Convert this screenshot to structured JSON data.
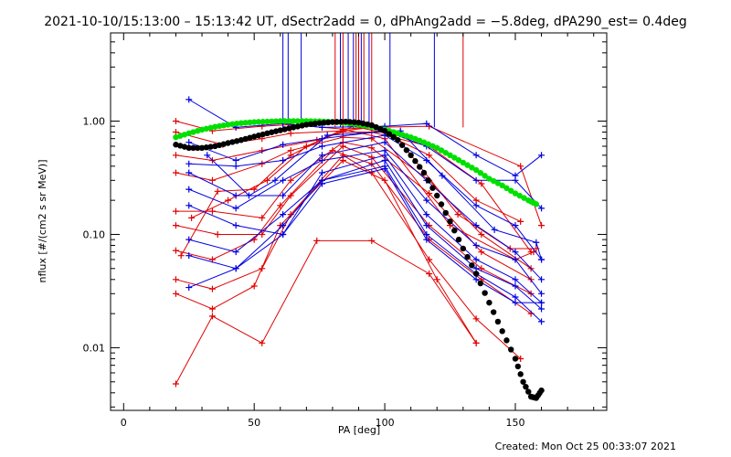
{
  "header": {
    "title": "2021-10-10/15:13:00 – 15:13:42 UT, dSectr2add = 0, dPhAng2add = −5.8deg, dPA290_est=  0.4deg",
    "created": "Created: Mon Oct 25 00:33:07 2021"
  },
  "colors": {
    "red": "#e00000",
    "blue": "#0000e0",
    "green": "#00e000",
    "black": "#000000"
  },
  "chart_data": {
    "type": "line",
    "xlabel": "PA [deg]",
    "ylabel": "nflux [#/(cm2 s sr MeV)]",
    "xlim": [
      -5,
      185
    ],
    "ylim": [
      0.0028,
      6.0
    ],
    "yscale": "log",
    "grid": false,
    "xticks": [
      {
        "v": 0,
        "label": "0"
      },
      {
        "v": 50,
        "label": "50"
      },
      {
        "v": 100,
        "label": "100"
      },
      {
        "v": 150,
        "label": "150"
      }
    ],
    "yticks": [
      {
        "v": 0.01,
        "label": "0.01"
      },
      {
        "v": 0.1,
        "label": "0.10"
      },
      {
        "v": 1,
        "label": "1.00"
      }
    ],
    "vertical_markers": {
      "blue": [
        61,
        63,
        68,
        83,
        86,
        88,
        91,
        94,
        102,
        119
      ],
      "red": [
        81,
        84,
        89,
        90,
        92,
        95,
        130
      ]
    },
    "series": [
      {
        "color": "red",
        "points": [
          [
            20,
            1.0
          ],
          [
            34,
            0.82
          ],
          [
            53,
            0.9
          ],
          [
            64,
            0.93
          ],
          [
            84,
            0.85
          ],
          [
            95,
            0.88
          ],
          [
            117,
            0.9
          ],
          [
            152,
            0.4
          ],
          [
            160,
            0.12
          ]
        ]
      },
      {
        "color": "red",
        "points": [
          [
            20,
            0.8
          ],
          [
            38,
            0.62
          ],
          [
            53,
            0.7
          ],
          [
            64,
            0.78
          ],
          [
            84,
            0.82
          ],
          [
            95,
            0.88
          ],
          [
            117,
            0.5
          ],
          [
            135,
            0.2
          ],
          [
            152,
            0.13
          ]
        ]
      },
      {
        "color": "red",
        "points": [
          [
            20,
            0.5
          ],
          [
            34,
            0.45
          ],
          [
            53,
            0.55
          ],
          [
            74,
            0.68
          ],
          [
            84,
            0.8
          ],
          [
            95,
            0.8
          ],
          [
            117,
            0.6
          ],
          [
            137,
            0.28
          ],
          [
            156,
            0.07
          ]
        ]
      },
      {
        "color": "red",
        "points": [
          [
            20,
            0.35
          ],
          [
            34,
            0.3
          ],
          [
            53,
            0.42
          ],
          [
            64,
            0.55
          ],
          [
            84,
            0.72
          ],
          [
            95,
            0.7
          ],
          [
            117,
            0.3
          ],
          [
            137,
            0.1
          ],
          [
            156,
            0.05
          ]
        ]
      },
      {
        "color": "red",
        "points": [
          [
            20,
            0.16
          ],
          [
            34,
            0.16
          ],
          [
            53,
            0.14
          ],
          [
            64,
            0.3
          ],
          [
            84,
            0.65
          ],
          [
            95,
            0.58
          ],
          [
            117,
            0.23
          ],
          [
            137,
            0.07
          ],
          [
            156,
            0.04
          ]
        ]
      },
      {
        "color": "red",
        "points": [
          [
            20,
            0.12
          ],
          [
            36,
            0.1
          ],
          [
            53,
            0.1
          ],
          [
            64,
            0.22
          ],
          [
            84,
            0.6
          ],
          [
            95,
            0.48
          ],
          [
            117,
            0.12
          ],
          [
            137,
            0.05
          ],
          [
            156,
            0.03
          ]
        ]
      },
      {
        "color": "red",
        "points": [
          [
            20,
            0.072
          ],
          [
            34,
            0.06
          ],
          [
            50,
            0.09
          ],
          [
            60,
            0.18
          ],
          [
            80,
            0.55
          ],
          [
            95,
            0.42
          ],
          [
            117,
            0.09
          ],
          [
            137,
            0.04
          ],
          [
            156,
            0.02
          ]
        ]
      },
      {
        "color": "red",
        "points": [
          [
            20,
            0.04
          ],
          [
            34,
            0.033
          ],
          [
            53,
            0.05
          ],
          [
            64,
            0.15
          ],
          [
            84,
            0.5
          ],
          [
            95,
            0.35
          ],
          [
            117,
            0.06
          ],
          [
            135,
            0.018
          ],
          [
            152,
            0.008
          ]
        ]
      },
      {
        "color": "red",
        "points": [
          [
            20,
            0.03
          ],
          [
            34,
            0.022
          ],
          [
            50,
            0.035
          ],
          [
            60,
            0.12
          ],
          [
            84,
            0.45
          ],
          [
            100,
            0.3
          ],
          [
            120,
            0.04
          ],
          [
            135,
            0.011
          ]
        ]
      },
      {
        "color": "red",
        "points": [
          [
            20,
            0.0048
          ],
          [
            34,
            0.019
          ],
          [
            53,
            0.011
          ],
          [
            74,
            0.088
          ],
          [
            95,
            0.088
          ],
          [
            117,
            0.045
          ],
          [
            135,
            0.011
          ]
        ]
      },
      {
        "color": "red",
        "points": [
          [
            22,
            0.065
          ],
          [
            36,
            0.24
          ],
          [
            50,
            0.25
          ],
          [
            64,
            0.5
          ],
          [
            84,
            0.85
          ],
          [
            100,
            0.7
          ],
          [
            125,
            0.12
          ],
          [
            150,
            0.06
          ],
          [
            157,
            0.07
          ]
        ]
      },
      {
        "color": "red",
        "points": [
          [
            26,
            0.14
          ],
          [
            40,
            0.2
          ],
          [
            55,
            0.3
          ],
          [
            70,
            0.6
          ],
          [
            88,
            0.9
          ],
          [
            104,
            0.75
          ],
          [
            128,
            0.15
          ],
          [
            148,
            0.075
          ],
          [
            158,
            0.075
          ]
        ]
      },
      {
        "color": "blue",
        "points": [
          [
            25,
            1.55
          ],
          [
            43,
            0.88
          ],
          [
            61,
            0.95
          ],
          [
            76,
            0.88
          ],
          [
            100,
            0.9
          ],
          [
            116,
            0.95
          ],
          [
            135,
            0.5
          ],
          [
            150,
            0.33
          ],
          [
            160,
            0.5
          ]
        ]
      },
      {
        "color": "blue",
        "points": [
          [
            25,
            0.65
          ],
          [
            43,
            0.45
          ],
          [
            61,
            0.62
          ],
          [
            76,
            0.7
          ],
          [
            100,
            0.82
          ],
          [
            116,
            0.6
          ],
          [
            135,
            0.3
          ],
          [
            150,
            0.3
          ],
          [
            160,
            0.17
          ]
        ]
      },
      {
        "color": "blue",
        "points": [
          [
            25,
            0.42
          ],
          [
            43,
            0.4
          ],
          [
            61,
            0.45
          ],
          [
            76,
            0.6
          ],
          [
            100,
            0.75
          ],
          [
            116,
            0.45
          ],
          [
            135,
            0.18
          ],
          [
            150,
            0.12
          ],
          [
            160,
            0.06
          ]
        ]
      },
      {
        "color": "blue",
        "points": [
          [
            25,
            0.35
          ],
          [
            43,
            0.22
          ],
          [
            61,
            0.22
          ],
          [
            76,
            0.5
          ],
          [
            100,
            0.65
          ],
          [
            116,
            0.3
          ],
          [
            135,
            0.12
          ],
          [
            150,
            0.07
          ],
          [
            160,
            0.04
          ]
        ]
      },
      {
        "color": "blue",
        "points": [
          [
            25,
            0.25
          ],
          [
            43,
            0.17
          ],
          [
            61,
            0.3
          ],
          [
            76,
            0.45
          ],
          [
            100,
            0.55
          ],
          [
            116,
            0.2
          ],
          [
            135,
            0.08
          ],
          [
            150,
            0.06
          ],
          [
            160,
            0.03
          ]
        ]
      },
      {
        "color": "blue",
        "points": [
          [
            25,
            0.18
          ],
          [
            43,
            0.12
          ],
          [
            61,
            0.1
          ],
          [
            76,
            0.35
          ],
          [
            100,
            0.5
          ],
          [
            116,
            0.15
          ],
          [
            135,
            0.06
          ],
          [
            150,
            0.04
          ],
          [
            160,
            0.025
          ]
        ]
      },
      {
        "color": "blue",
        "points": [
          [
            25,
            0.09
          ],
          [
            43,
            0.07
          ],
          [
            61,
            0.15
          ],
          [
            76,
            0.3
          ],
          [
            100,
            0.45
          ],
          [
            116,
            0.12
          ],
          [
            135,
            0.05
          ],
          [
            150,
            0.035
          ],
          [
            160,
            0.022
          ]
        ]
      },
      {
        "color": "blue",
        "points": [
          [
            25,
            0.065
          ],
          [
            43,
            0.05
          ],
          [
            61,
            0.12
          ],
          [
            76,
            0.3
          ],
          [
            100,
            0.4
          ],
          [
            116,
            0.1
          ],
          [
            135,
            0.045
          ],
          [
            150,
            0.028
          ],
          [
            160,
            0.017
          ]
        ]
      },
      {
        "color": "blue",
        "points": [
          [
            25,
            0.034
          ],
          [
            43,
            0.05
          ],
          [
            61,
            0.1
          ],
          [
            76,
            0.28
          ],
          [
            100,
            0.38
          ],
          [
            116,
            0.09
          ],
          [
            135,
            0.04
          ],
          [
            150,
            0.025
          ],
          [
            160,
            0.025
          ]
        ]
      },
      {
        "color": "blue",
        "points": [
          [
            32,
            0.5
          ],
          [
            48,
            0.22
          ],
          [
            58,
            0.3
          ],
          [
            78,
            0.75
          ],
          [
            106,
            0.82
          ],
          [
            122,
            0.33
          ],
          [
            142,
            0.11
          ],
          [
            158,
            0.085
          ],
          [
            160,
            0.06
          ]
        ]
      },
      {
        "color": "green",
        "points": [
          [
            20,
            0.72
          ],
          [
            25,
            0.78
          ],
          [
            30,
            0.84
          ],
          [
            35,
            0.89
          ],
          [
            40,
            0.93
          ],
          [
            45,
            0.96
          ],
          [
            50,
            0.98
          ],
          [
            55,
            0.99
          ],
          [
            60,
            1.0
          ],
          [
            65,
            1.0
          ],
          [
            70,
            1.0
          ],
          [
            75,
            0.995
          ],
          [
            80,
            0.985
          ],
          [
            85,
            0.965
          ],
          [
            90,
            0.93
          ],
          [
            95,
            0.89
          ],
          [
            100,
            0.84
          ],
          [
            105,
            0.78
          ],
          [
            110,
            0.72
          ],
          [
            115,
            0.65
          ],
          [
            120,
            0.58
          ],
          [
            125,
            0.5
          ],
          [
            130,
            0.43
          ],
          [
            135,
            0.37
          ],
          [
            140,
            0.31
          ],
          [
            145,
            0.27
          ],
          [
            150,
            0.23
          ],
          [
            155,
            0.2
          ],
          [
            158,
            0.185
          ]
        ]
      },
      {
        "color": "black",
        "points": [
          [
            20,
            0.62
          ],
          [
            25,
            0.58
          ],
          [
            30,
            0.58
          ],
          [
            35,
            0.6
          ],
          [
            40,
            0.64
          ],
          [
            45,
            0.68
          ],
          [
            50,
            0.73
          ],
          [
            55,
            0.78
          ],
          [
            60,
            0.83
          ],
          [
            65,
            0.88
          ],
          [
            70,
            0.93
          ],
          [
            75,
            0.96
          ],
          [
            80,
            0.98
          ],
          [
            85,
            0.99
          ],
          [
            90,
            0.97
          ],
          [
            95,
            0.92
          ],
          [
            100,
            0.82
          ],
          [
            105,
            0.68
          ],
          [
            110,
            0.5
          ],
          [
            115,
            0.35
          ],
          [
            120,
            0.22
          ],
          [
            125,
            0.13
          ],
          [
            130,
            0.075
          ],
          [
            135,
            0.045
          ],
          [
            140,
            0.025
          ],
          [
            145,
            0.014
          ],
          [
            150,
            0.008
          ],
          [
            153,
            0.005
          ],
          [
            156,
            0.0037
          ],
          [
            158,
            0.0036
          ],
          [
            160,
            0.0042
          ]
        ]
      }
    ]
  }
}
